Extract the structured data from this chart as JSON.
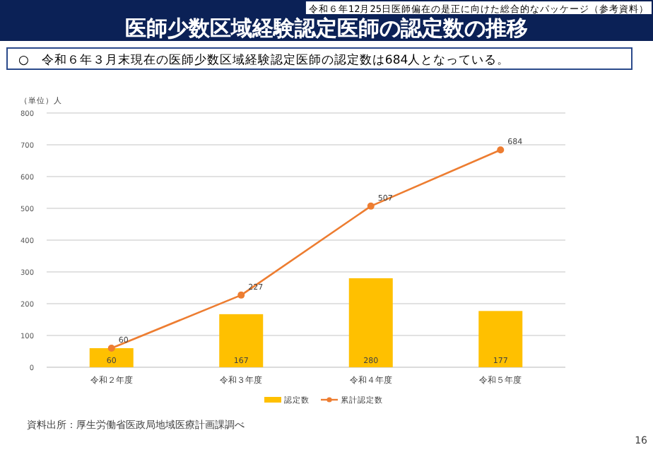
{
  "chart_data": {
    "type": "bar",
    "title": "医師少数区域経験認定医師の認定数の推移",
    "subtitle": "○　令和６年３月末現在の医師少数区域経験認定医師の認定数は684人となっている。",
    "ylabel": "（単位）人",
    "annotations": [
      "令和６年12月25日医師偏在の是正に向けた総合的なパッケージ（参考資料）",
      "資料出所：厚生労働省医政局地域医療計画課調べ",
      "16"
    ],
    "categories": [
      "令和２年度",
      "令和３年度",
      "令和４年度",
      "令和５年度"
    ],
    "series": [
      {
        "name": "認定数",
        "color": "#ffc000",
        "values": [
          60,
          167,
          280,
          177
        ]
      },
      {
        "name": "累計認定数",
        "type": "line",
        "color": "#ed7d31",
        "marker": "circle",
        "values": [
          60,
          227,
          507,
          684
        ]
      }
    ],
    "ylim": [
      0,
      800
    ],
    "yticks": [
      0,
      100,
      200,
      300,
      400,
      500,
      600,
      700,
      800
    ],
    "grid": "y",
    "legend": "bottom",
    "data_labels": true
  }
}
